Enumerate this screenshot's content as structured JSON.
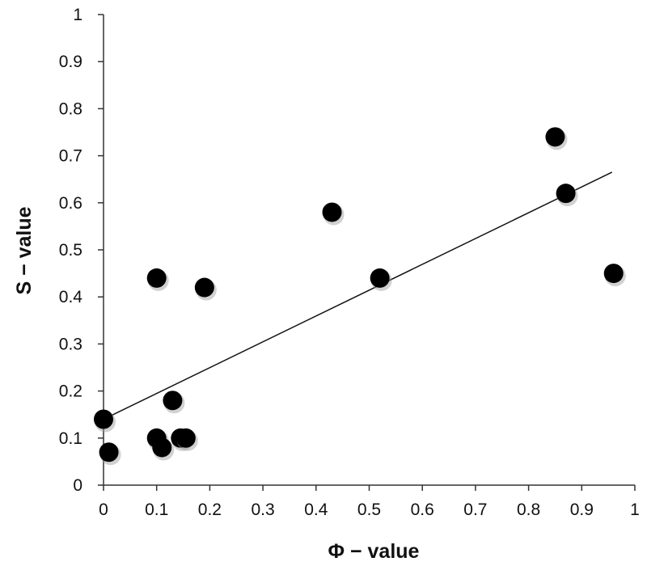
{
  "chart_data": {
    "type": "scatter",
    "xlabel": "Φ − value",
    "ylabel": "S − value",
    "xlim": [
      0,
      1
    ],
    "ylim": [
      0,
      1
    ],
    "x_ticks": [
      "0",
      "0.1",
      "0.2",
      "0.3",
      "0.4",
      "0.5",
      "0.6",
      "0.7",
      "0.8",
      "0.9",
      "1"
    ],
    "y_ticks": [
      "0",
      "0.1",
      "0.2",
      "0.3",
      "0.4",
      "0.5",
      "0.6",
      "0.7",
      "0.8",
      "0.9",
      "1"
    ],
    "grid": false,
    "marker_color": "#000000",
    "points": [
      {
        "x": 0.0,
        "y": 0.14
      },
      {
        "x": 0.01,
        "y": 0.07
      },
      {
        "x": 0.1,
        "y": 0.44
      },
      {
        "x": 0.1,
        "y": 0.1
      },
      {
        "x": 0.11,
        "y": 0.08
      },
      {
        "x": 0.13,
        "y": 0.18
      },
      {
        "x": 0.145,
        "y": 0.1
      },
      {
        "x": 0.155,
        "y": 0.1
      },
      {
        "x": 0.19,
        "y": 0.42
      },
      {
        "x": 0.43,
        "y": 0.58
      },
      {
        "x": 0.52,
        "y": 0.44
      },
      {
        "x": 0.85,
        "y": 0.74
      },
      {
        "x": 0.87,
        "y": 0.62
      },
      {
        "x": 0.96,
        "y": 0.45
      }
    ],
    "trendline": {
      "type": "linear",
      "x": [
        0.0,
        0.957
      ],
      "y": [
        0.14,
        0.665
      ]
    }
  }
}
